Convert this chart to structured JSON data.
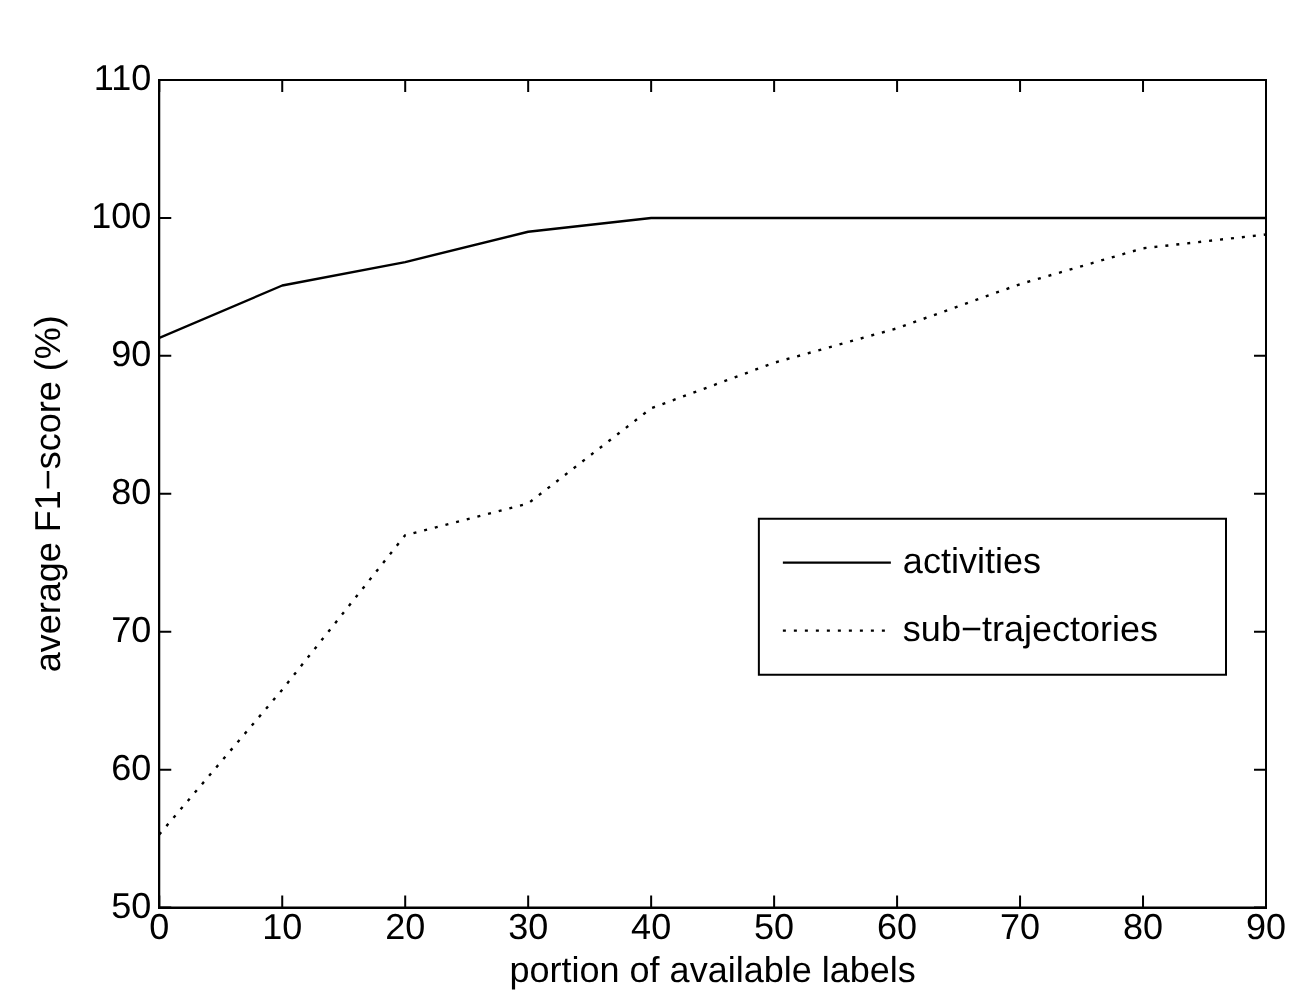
{
  "chart_data": {
    "type": "line",
    "xlabel": "portion of available labels",
    "ylabel": "average F1−score (%)",
    "x": [
      0,
      10,
      20,
      30,
      40,
      50,
      60,
      70,
      80,
      90
    ],
    "series": [
      {
        "name": "activities",
        "color": "#000000",
        "line_style": "solid",
        "values": [
          91.3,
          95.1,
          96.8,
          99,
          100,
          100,
          100,
          100,
          100,
          100
        ]
      },
      {
        "name": "sub−trajectories",
        "color": "#000000",
        "line_style": "dotted",
        "values": [
          55.3,
          65.8,
          77,
          79.3,
          86.2,
          89.5,
          92,
          95.2,
          97.8,
          98.8
        ]
      }
    ],
    "xlim": [
      0,
      90
    ],
    "xticks": [
      0,
      10,
      20,
      30,
      40,
      50,
      60,
      70,
      80,
      90
    ],
    "ylim": [
      50,
      110
    ],
    "yticks": [
      50,
      60,
      70,
      80,
      90,
      100,
      110
    ],
    "legend": "right",
    "marker": "none"
  }
}
